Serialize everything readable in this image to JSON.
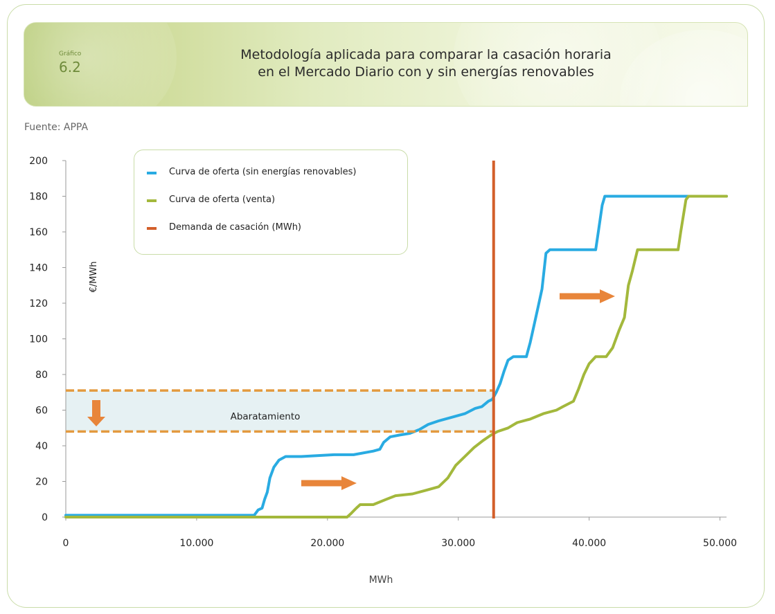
{
  "header": {
    "label": "Gráfico",
    "number": "6.2",
    "title_line1": "Metodología aplicada para comparar la casación horaria",
    "title_line2": "en el Mercado Diario con y sin energías renovables"
  },
  "source": "Fuente: APPA",
  "colors": {
    "blue": "#29abe2",
    "green": "#a3b83c",
    "demand": "#d35f2a",
    "dash": "#e39a3f",
    "band": "#e6f1f3",
    "arrow": "#e8853a"
  },
  "chart_data": {
    "type": "line",
    "xlabel": "MWh",
    "ylabel": "€/MWh",
    "xlim": [
      0,
      50500
    ],
    "ylim": [
      0,
      200
    ],
    "x_ticks": [
      {
        "value": 0,
        "label": "0"
      },
      {
        "value": 10000,
        "label": "10.000"
      },
      {
        "value": 20000,
        "label": "20.000"
      },
      {
        "value": 30000,
        "label": "30.000"
      },
      {
        "value": 40000,
        "label": "40.000"
      },
      {
        "value": 50000,
        "label": "50.000"
      }
    ],
    "y_ticks": [
      0,
      20,
      40,
      60,
      80,
      100,
      120,
      140,
      160,
      180,
      200
    ],
    "series": [
      {
        "name": "Curva de oferta (sin energías renovables)",
        "color": "#29abe2",
        "points": [
          [
            0,
            1
          ],
          [
            14400,
            1
          ],
          [
            14700,
            4
          ],
          [
            15000,
            5
          ],
          [
            15200,
            10
          ],
          [
            15400,
            14
          ],
          [
            15600,
            22
          ],
          [
            15900,
            28
          ],
          [
            16300,
            32
          ],
          [
            16800,
            34
          ],
          [
            18000,
            34
          ],
          [
            20500,
            35
          ],
          [
            22000,
            35
          ],
          [
            23500,
            37
          ],
          [
            24000,
            38
          ],
          [
            24300,
            42
          ],
          [
            24800,
            45
          ],
          [
            25500,
            46
          ],
          [
            26300,
            47
          ],
          [
            27000,
            49
          ],
          [
            27700,
            52
          ],
          [
            28500,
            54
          ],
          [
            29500,
            56
          ],
          [
            30500,
            58
          ],
          [
            31300,
            61
          ],
          [
            31800,
            62
          ],
          [
            32300,
            65
          ],
          [
            32600,
            66
          ],
          [
            32900,
            70
          ],
          [
            33200,
            75
          ],
          [
            33500,
            82
          ],
          [
            33800,
            88
          ],
          [
            34200,
            90
          ],
          [
            35200,
            90
          ],
          [
            35500,
            98
          ],
          [
            35800,
            108
          ],
          [
            36100,
            118
          ],
          [
            36400,
            128
          ],
          [
            36700,
            148
          ],
          [
            37000,
            150
          ],
          [
            40500,
            150
          ],
          [
            40700,
            160
          ],
          [
            41000,
            175
          ],
          [
            41200,
            180
          ],
          [
            50500,
            180
          ]
        ]
      },
      {
        "name": "Curva de oferta (venta)",
        "color": "#a3b83c",
        "points": [
          [
            0,
            0
          ],
          [
            21500,
            0
          ],
          [
            21800,
            2
          ],
          [
            22200,
            5
          ],
          [
            22500,
            7
          ],
          [
            23500,
            7
          ],
          [
            24500,
            10
          ],
          [
            25200,
            12
          ],
          [
            26500,
            13
          ],
          [
            27500,
            15
          ],
          [
            28500,
            17
          ],
          [
            29200,
            22
          ],
          [
            29800,
            29
          ],
          [
            30500,
            34
          ],
          [
            31200,
            39
          ],
          [
            31900,
            43
          ],
          [
            32500,
            46
          ],
          [
            33000,
            48
          ],
          [
            33800,
            50
          ],
          [
            34500,
            53
          ],
          [
            35500,
            55
          ],
          [
            36500,
            58
          ],
          [
            37500,
            60
          ],
          [
            38000,
            62
          ],
          [
            38800,
            65
          ],
          [
            39200,
            72
          ],
          [
            39600,
            80
          ],
          [
            40000,
            86
          ],
          [
            40500,
            90
          ],
          [
            41300,
            90
          ],
          [
            41800,
            95
          ],
          [
            42300,
            105
          ],
          [
            42700,
            112
          ],
          [
            43000,
            130
          ],
          [
            43300,
            138
          ],
          [
            43700,
            150
          ],
          [
            46800,
            150
          ],
          [
            47000,
            160
          ],
          [
            47400,
            178
          ],
          [
            47600,
            180
          ],
          [
            50500,
            180
          ]
        ]
      },
      {
        "name": "Demanda de casación (MWh)",
        "color": "#d35f2a",
        "x": 32700
      }
    ],
    "price_band": {
      "high": 71,
      "low": 48
    },
    "annotations": [
      {
        "text": "Abaratamiento"
      }
    ]
  }
}
